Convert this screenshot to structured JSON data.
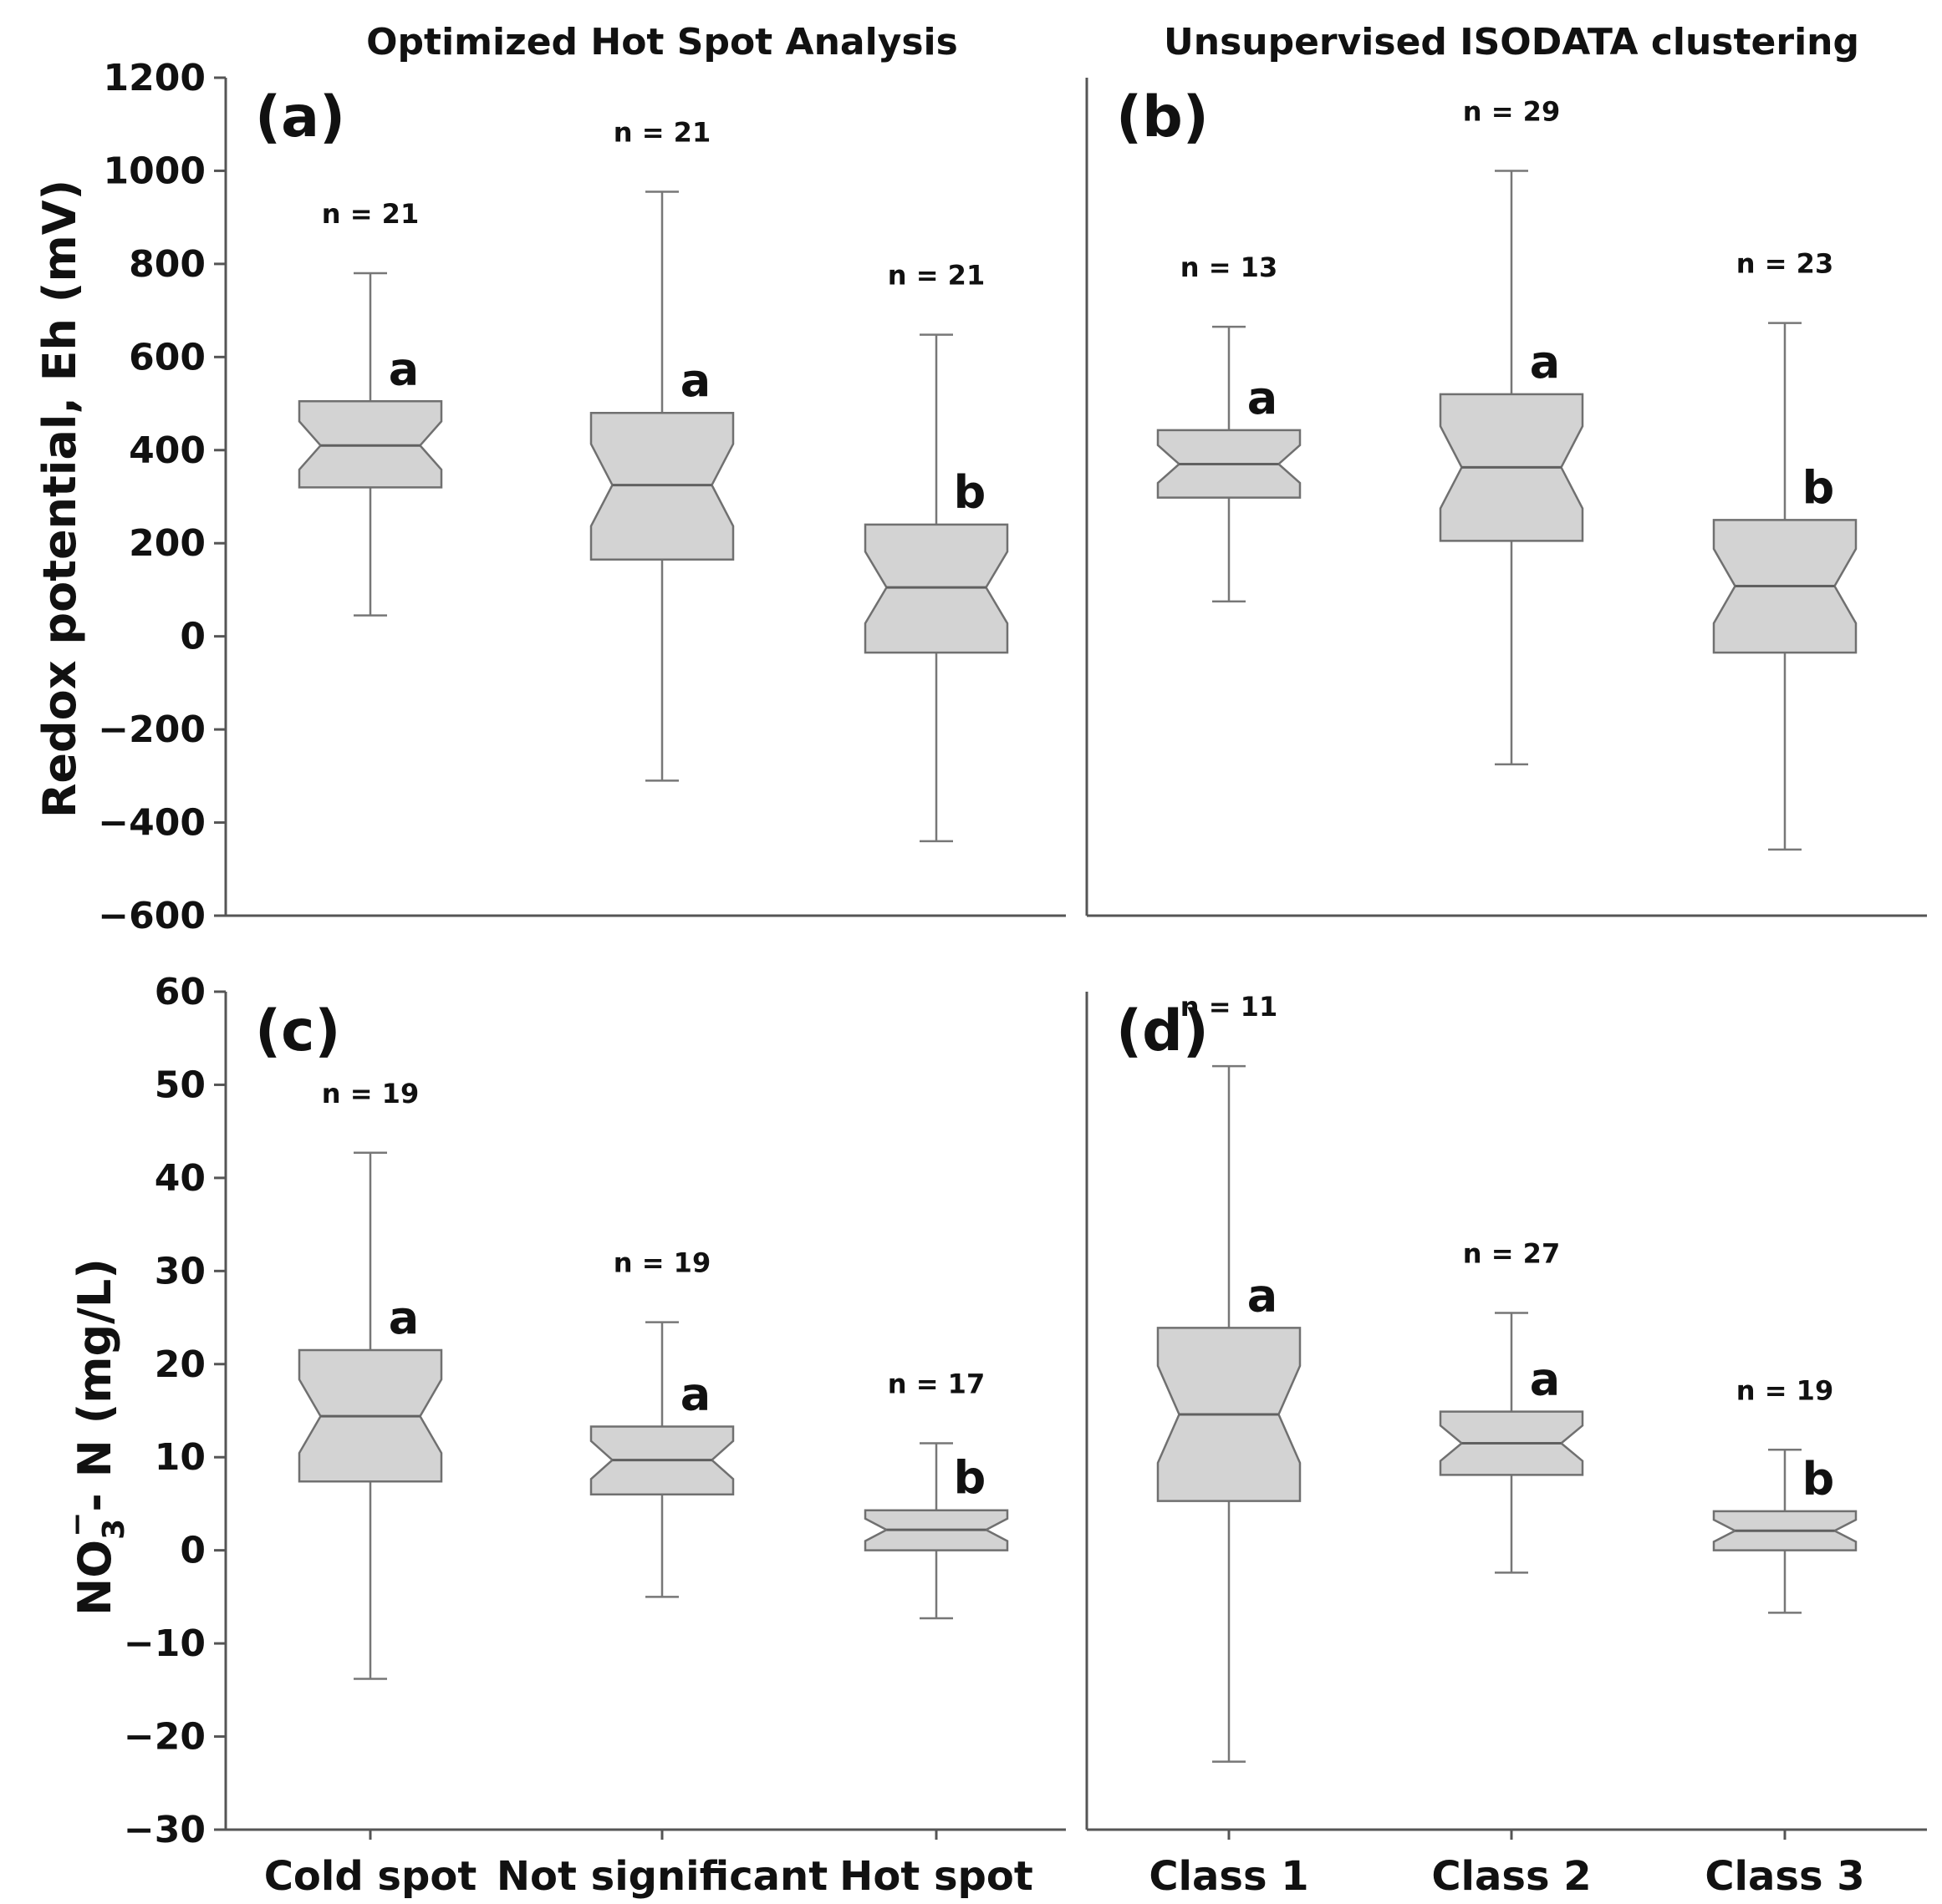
{
  "column_titles": [
    "Optimized Hot Spot Analysis",
    "Unsupervised ISODATA clustering"
  ],
  "chart_data": [
    {
      "type": "box",
      "panel": "(a)",
      "ylabel": "Redox potential, Eh (mV)",
      "ylim": [
        -600,
        1200
      ],
      "yticks": [
        1200,
        1000,
        800,
        600,
        400,
        200,
        0,
        -200,
        -400,
        -600
      ],
      "ytick_labels": [
        "1200",
        "1000",
        "800",
        "600",
        "400",
        "200",
        "0",
        "−200",
        "−400",
        "−600"
      ],
      "categories": [
        "Cold spot",
        "Not significant",
        "Hot spot"
      ],
      "boxes": [
        {
          "min": 45,
          "q1": 320,
          "median": 410,
          "q3": 505,
          "max": 780,
          "n_label": "n = 21",
          "sig": "a"
        },
        {
          "min": -310,
          "q1": 165,
          "median": 325,
          "q3": 480,
          "max": 955,
          "n_label": "n = 21",
          "sig": "a"
        },
        {
          "min": -440,
          "q1": -35,
          "median": 105,
          "q3": 240,
          "max": 648,
          "n_label": "n = 21",
          "sig": "b"
        }
      ]
    },
    {
      "type": "box",
      "panel": "(b)",
      "ylim": [
        -600,
        1200
      ],
      "categories": [
        "Class 1",
        "Class 2",
        "Class 3"
      ],
      "boxes": [
        {
          "min": 75,
          "q1": 298,
          "median": 370,
          "q3": 443,
          "max": 665,
          "n_label": "n = 13",
          "sig": "a"
        },
        {
          "min": -275,
          "q1": 205,
          "median": 363,
          "q3": 520,
          "max": 1000,
          "n_label": "n = 29",
          "sig": "a"
        },
        {
          "min": -458,
          "q1": -35,
          "median": 108,
          "q3": 250,
          "max": 673,
          "n_label": "n = 23",
          "sig": "b"
        }
      ]
    },
    {
      "type": "box",
      "panel": "(c)",
      "ylabel_main": "NO",
      "ylabel_sub": "3",
      "ylabel_sup": "−",
      "ylabel_rest": "- N (mg/L)",
      "ylim": [
        -30,
        60
      ],
      "yticks": [
        60,
        50,
        40,
        30,
        20,
        10,
        0,
        -10,
        -20,
        -30
      ],
      "ytick_labels": [
        "60",
        "50",
        "40",
        "30",
        "20",
        "10",
        "0",
        "−10",
        "−20",
        "−30"
      ],
      "categories": [
        "Cold spot",
        "Not significant",
        "Hot spot"
      ],
      "boxes": [
        {
          "min": -13.8,
          "q1": 7.4,
          "median": 14.4,
          "q3": 21.5,
          "max": 42.7,
          "n_label": "n = 19",
          "sig": "a"
        },
        {
          "min": -5.0,
          "q1": 6.0,
          "median": 9.7,
          "q3": 13.3,
          "max": 24.5,
          "n_label": "n = 19",
          "sig": "a"
        },
        {
          "min": -7.3,
          "q1": 0,
          "median": 2.2,
          "q3": 4.3,
          "max": 11.5,
          "n_label": "n = 17",
          "sig": "b"
        }
      ]
    },
    {
      "type": "box",
      "panel": "(d)",
      "ylim": [
        -30,
        60
      ],
      "categories": [
        "Class 1",
        "Class 2",
        "Class 3"
      ],
      "boxes": [
        {
          "min": -22.7,
          "q1": 5.3,
          "median": 14.6,
          "q3": 23.9,
          "max": 52.0,
          "n_label": "n = 11",
          "sig": "a"
        },
        {
          "min": -2.4,
          "q1": 8.1,
          "median": 11.5,
          "q3": 14.9,
          "max": 25.5,
          "n_label": "n = 27",
          "sig": "a"
        },
        {
          "min": -6.7,
          "q1": 0,
          "median": 2.1,
          "q3": 4.2,
          "max": 10.8,
          "n_label": "n = 19",
          "sig": "b"
        }
      ]
    }
  ]
}
